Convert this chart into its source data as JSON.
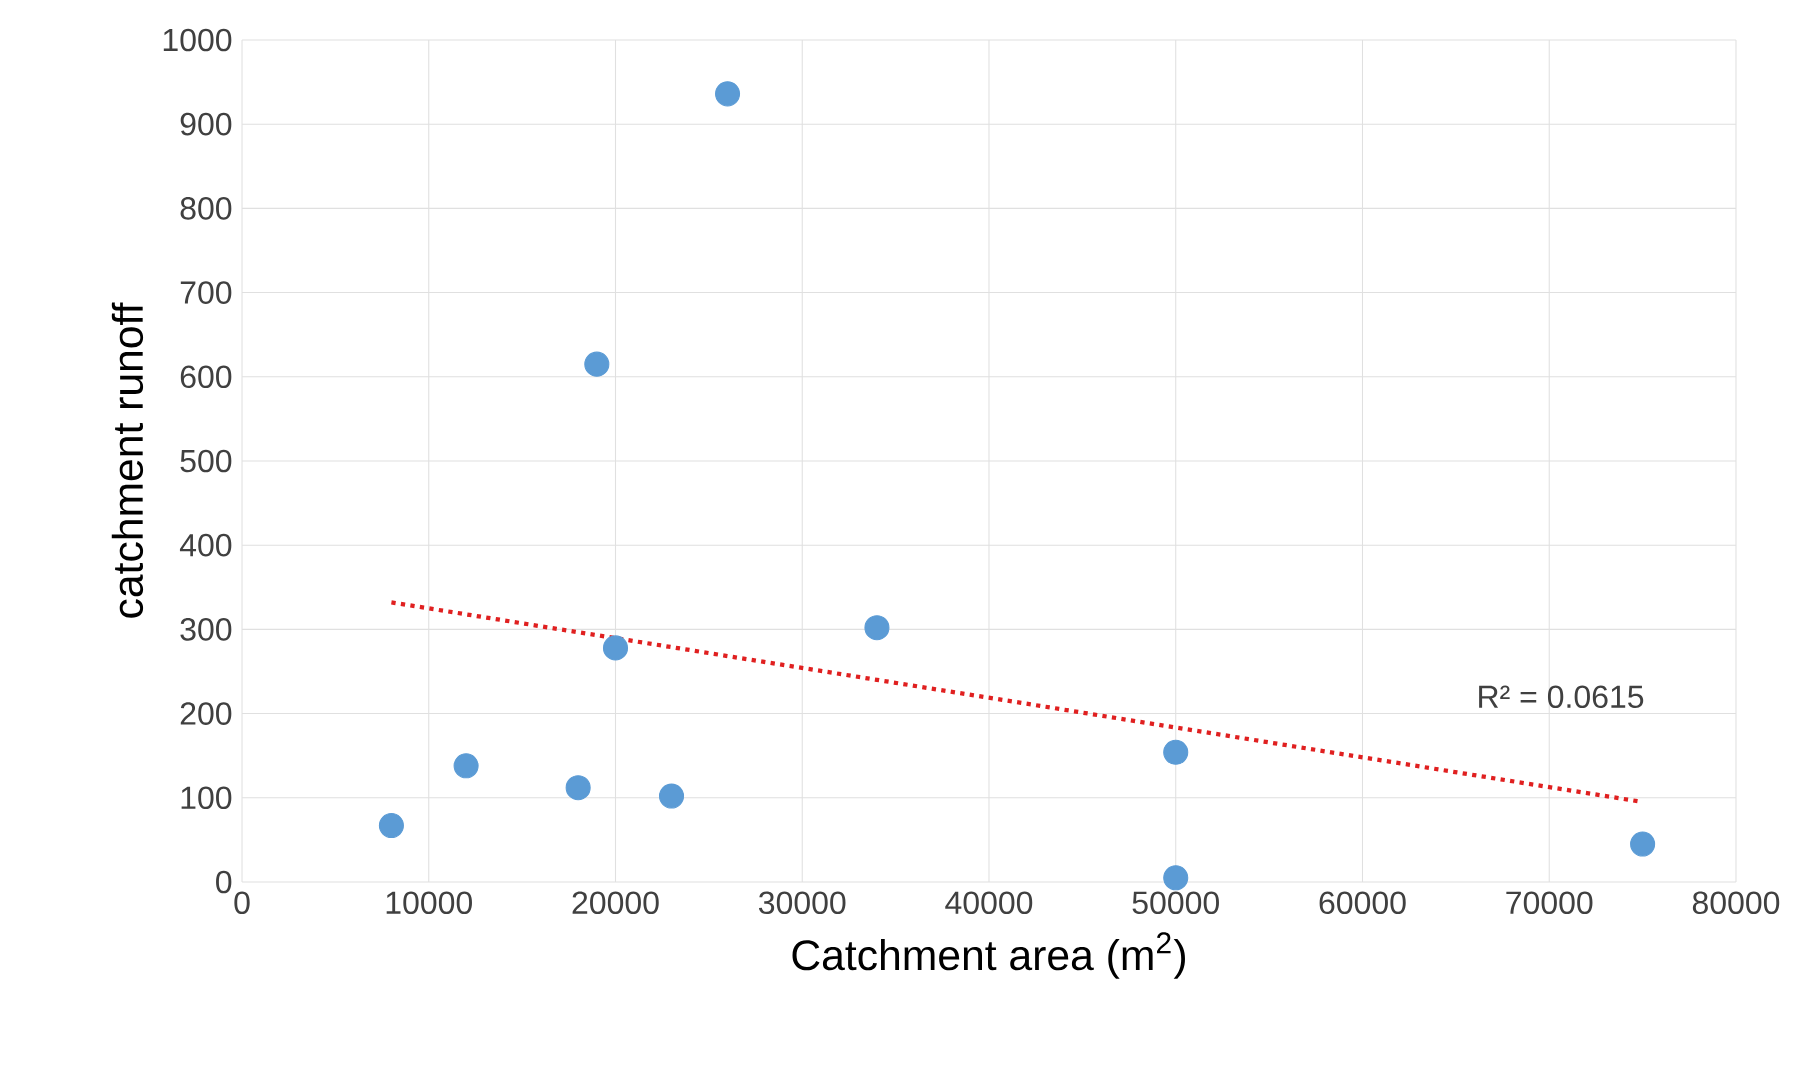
{
  "chart_data": {
    "type": "scatter",
    "xlabel": "Catchment area (m$^{2}$)",
    "ylabel": "catchment runoff",
    "marker": "circle",
    "grid": true,
    "xlim": [
      0,
      80000
    ],
    "xticks": [
      0,
      10000,
      20000,
      30000,
      40000,
      50000,
      60000,
      70000,
      80000
    ],
    "ylim": [
      0,
      1000
    ],
    "yticks": [
      0,
      100,
      200,
      300,
      400,
      500,
      600,
      700,
      800,
      900,
      1000
    ],
    "series": [
      {
        "color": "#5b9bd5",
        "x": [
          8000,
          12000,
          18000,
          19000,
          20000,
          23000,
          26000,
          34000,
          50000,
          50000,
          75000
        ],
        "values": [
          67,
          138,
          112,
          615,
          278,
          102,
          936,
          302,
          154,
          5,
          45
        ]
      },
      {
        "type": "line",
        "color": "#e02020",
        "line_style": "dotted",
        "marker": "none",
        "x": [
          8000,
          75000
        ],
        "values": [
          332,
          95
        ]
      }
    ],
    "annotations": [
      "R² = 0.0615"
    ]
  }
}
